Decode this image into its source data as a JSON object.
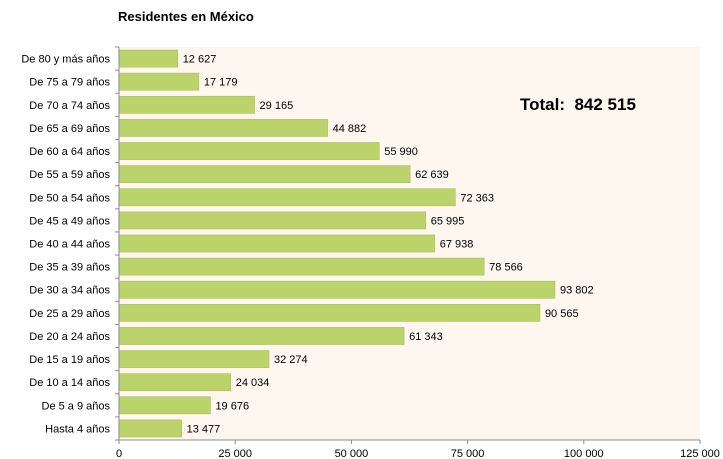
{
  "chart_data": {
    "type": "bar",
    "orientation": "horizontal",
    "title": "Residentes en México",
    "total_label": "Total:",
    "total_value": "842 515",
    "categories": [
      "De 80 y más años",
      "De 75 a 79 años",
      "De 70 a 74 años",
      "De 65 a 69 años",
      "De 60 a 64 años",
      "De 55 a 59 años",
      "De 50 a 54 años",
      "De 45 a 49 años",
      "De 40 a 44 años",
      "De 35 a 39 años",
      "De 30 a 34 años",
      "De 25 a 29 años",
      "De 20 a 24 años",
      "De 15 a 19 años",
      "De 10 a 14 años",
      "De 5 a 9 años",
      "Hasta 4 años"
    ],
    "values": [
      12627,
      17179,
      29165,
      44882,
      55990,
      62639,
      72363,
      65995,
      67938,
      78566,
      93802,
      90565,
      61343,
      32274,
      24034,
      19676,
      13477
    ],
    "value_labels": [
      "12 627",
      "17 179",
      "29 165",
      "44 882",
      "55 990",
      "62 639",
      "72 363",
      "65 995",
      "67 938",
      "78 566",
      "93 802",
      "90 565",
      "61 343",
      "32 274",
      "24 034",
      "19 676",
      "13 477"
    ],
    "xlim": [
      0,
      125000
    ],
    "xticks": [
      0,
      25000,
      50000,
      75000,
      100000,
      125000
    ],
    "xtick_labels": [
      "0",
      "25 000",
      "50 000",
      "75 000",
      "100 000",
      "125 000"
    ],
    "xlabel": "",
    "ylabel": "",
    "grid": false,
    "legend": "none",
    "colors": {
      "bar_fill": "#bcd36b",
      "bar_stroke": "#a9c158",
      "plot_background": "#fdf7f0",
      "axis": "#8c8c8c",
      "text": "#000000"
    }
  }
}
